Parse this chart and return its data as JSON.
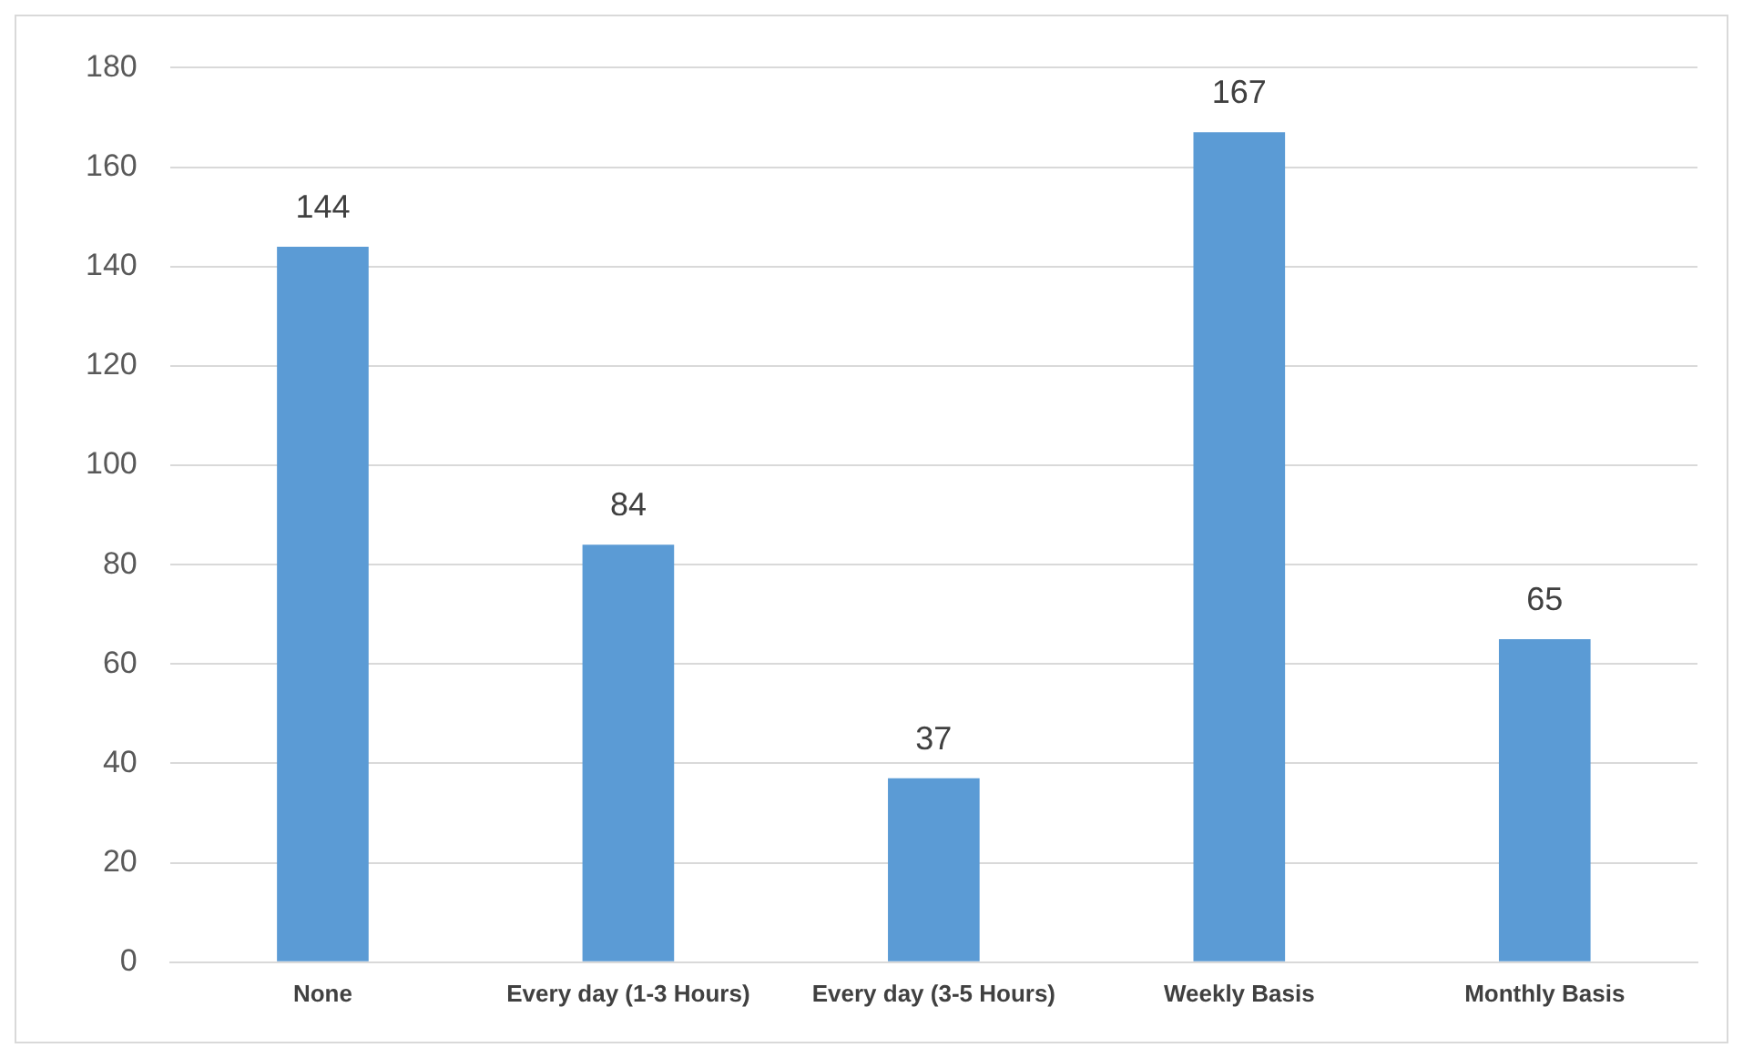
{
  "chart_data": {
    "type": "bar",
    "categories": [
      "None",
      "Every day (1-3 Hours)",
      "Every day (3-5 Hours)",
      "Weekly Basis",
      "Monthly Basis"
    ],
    "values": [
      144,
      84,
      37,
      167,
      65
    ],
    "color": "#5b9bd5",
    "ylim": [
      0,
      180
    ],
    "yticks": [
      0,
      20,
      40,
      60,
      80,
      100,
      120,
      140,
      160,
      180
    ],
    "grid": "y",
    "data_labels": true,
    "legend": false
  }
}
